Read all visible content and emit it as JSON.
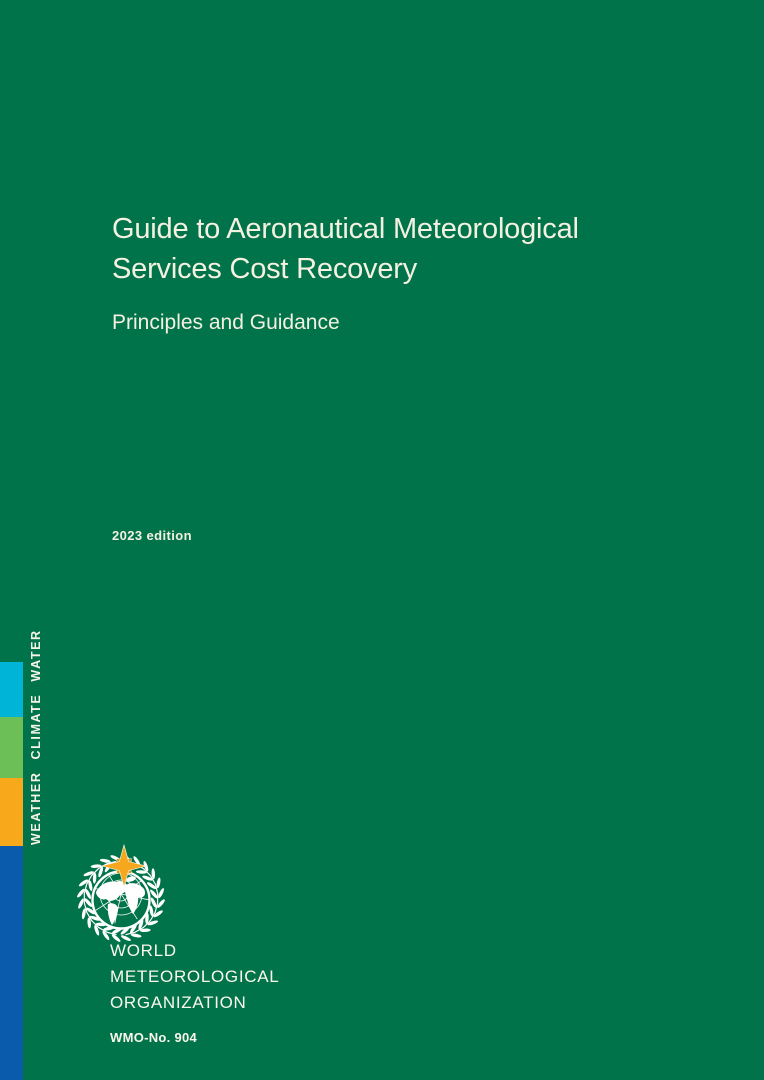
{
  "page": {
    "background_color": "#00734a"
  },
  "cover": {
    "title_lines": [
      "Guide to Aeronautical Meteorological",
      "Services Cost Recovery"
    ],
    "subtitle": "Principles and Guidance",
    "edition": "2023 edition",
    "text_color": "#f5f1e1"
  },
  "sidebar": {
    "tagline": "WEATHER CLIMATE WATER",
    "stripes": [
      {
        "name": "cyan",
        "color": "#00b4d8"
      },
      {
        "name": "green",
        "color": "#6cbe56"
      },
      {
        "name": "orange",
        "color": "#f7a81b"
      },
      {
        "name": "blue",
        "color": "#0a5bab"
      }
    ]
  },
  "footer": {
    "organization_lines": [
      "WORLD",
      "METEOROLOGICAL",
      "ORGANIZATION"
    ],
    "publication_number": "WMO-No. 904",
    "logo": {
      "star_color": "#f6a71e",
      "star_shadow_color": "#e0920f",
      "emblem_color": "#ffffff"
    }
  }
}
